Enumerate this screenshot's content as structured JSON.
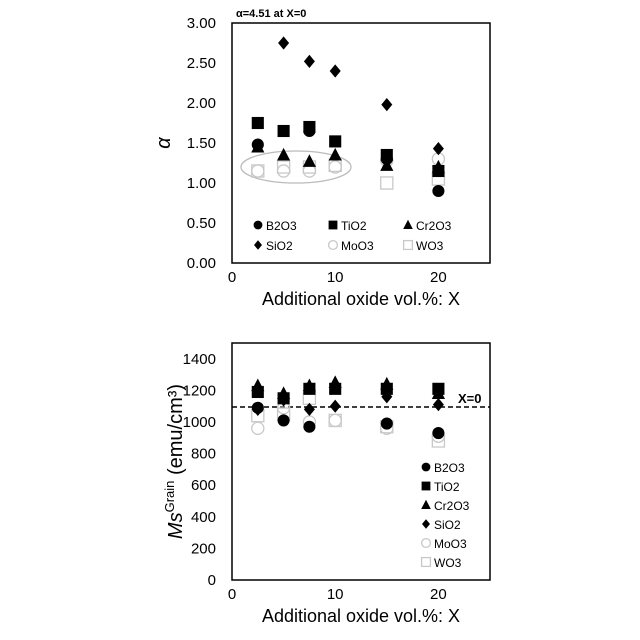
{
  "chart_data": [
    {
      "type": "scatter",
      "title": "",
      "annotation": "α=4.51 at X=0",
      "xlabel": "Additional oxide vol.%: X",
      "ylabel": "α",
      "xlim": [
        0,
        25
      ],
      "ylim": [
        0,
        3
      ],
      "xticks": [
        "0",
        "10",
        "20"
      ],
      "xtickvals": [
        0,
        10,
        20
      ],
      "yticks": [
        "0.00",
        "0.50",
        "1.00",
        "1.50",
        "2.00",
        "2.50",
        "3.00"
      ],
      "ytickvals": [
        0,
        0.5,
        1,
        1.5,
        2,
        2.5,
        3
      ],
      "x": [
        2.5,
        5,
        7.5,
        10,
        15,
        20
      ],
      "legend": "bottom-inside",
      "series": [
        {
          "name": "B2O3",
          "marker": "circle-filled",
          "values": [
            1.48,
            null,
            1.65,
            null,
            1.3,
            0.9
          ]
        },
        {
          "name": "TiO2",
          "marker": "square-filled",
          "values": [
            1.75,
            1.65,
            1.7,
            1.52,
            1.35,
            1.15
          ]
        },
        {
          "name": "Cr2O3",
          "marker": "triangle-filled",
          "values": [
            1.45,
            1.35,
            1.27,
            1.35,
            1.22,
            1.2
          ]
        },
        {
          "name": "SiO2",
          "marker": "diamond-filled",
          "values": [
            null,
            2.75,
            2.52,
            2.4,
            1.98,
            1.43
          ]
        },
        {
          "name": "MoO3",
          "marker": "circle-open",
          "values": [
            1.15,
            1.15,
            1.15,
            1.2,
            1.28,
            1.3
          ]
        },
        {
          "name": "WO3",
          "marker": "square-open",
          "values": [
            1.15,
            1.2,
            1.2,
            1.22,
            1.0,
            1.05
          ]
        }
      ]
    },
    {
      "type": "scatter",
      "title": "",
      "annotation": "X=0",
      "reference_line": 1095,
      "xlabel": "Additional oxide vol.%: X",
      "ylabel": "Ms",
      "ylabel_sup": "Grain",
      "ylabel_unit": " (emu/cm³)",
      "xlim": [
        0,
        25
      ],
      "ylim": [
        0,
        1500
      ],
      "xticks": [
        "0",
        "10",
        "20"
      ],
      "xtickvals": [
        0,
        10,
        20
      ],
      "yticks": [
        "0",
        "200",
        "400",
        "600",
        "800",
        "1000",
        "1200",
        "1400"
      ],
      "ytickvals": [
        0,
        200,
        400,
        600,
        800,
        1000,
        1200,
        1400
      ],
      "x": [
        2.5,
        5,
        7.5,
        10,
        15,
        20
      ],
      "legend": "bottom-right",
      "series": [
        {
          "name": "B2O3",
          "marker": "circle-filled",
          "values": [
            1090,
            1010,
            970,
            null,
            990,
            930
          ]
        },
        {
          "name": "TiO2",
          "marker": "square-filled",
          "values": [
            1190,
            1150,
            1210,
            1210,
            1210,
            1210
          ]
        },
        {
          "name": "Cr2O3",
          "marker": "triangle-filled",
          "values": [
            1230,
            1180,
            1230,
            1250,
            1240,
            1180
          ]
        },
        {
          "name": "SiO2",
          "marker": "diamond-filled",
          "values": [
            1080,
            1140,
            1080,
            1100,
            1160,
            1110
          ]
        },
        {
          "name": "MoO3",
          "marker": "circle-open",
          "values": [
            960,
            1090,
            1000,
            1010,
            960,
            910
          ]
        },
        {
          "name": "WO3",
          "marker": "square-open",
          "values": [
            1040,
            1050,
            1150,
            1010,
            970,
            880
          ]
        }
      ]
    }
  ]
}
